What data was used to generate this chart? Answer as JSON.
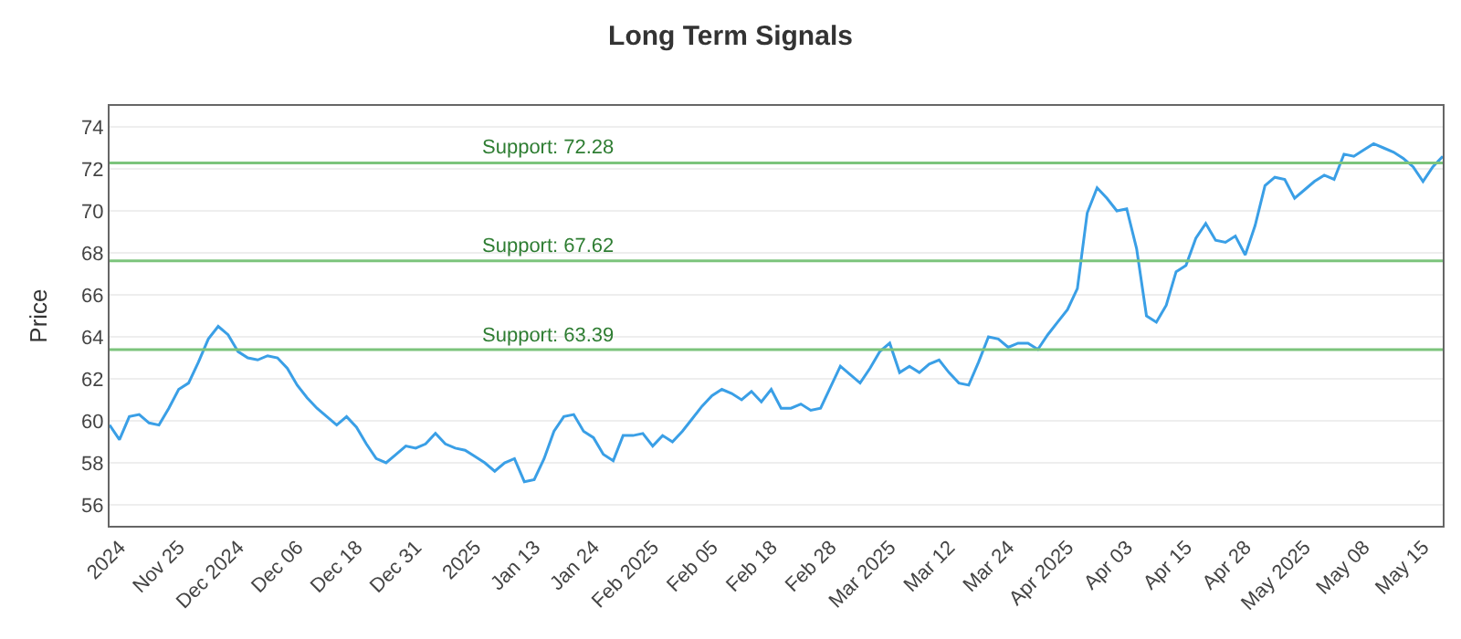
{
  "chart_data": {
    "type": "line",
    "title": "Long Term Signals",
    "ylabel": "Price",
    "categories": [
      null,
      "2024",
      null,
      null,
      null,
      null,
      null,
      "Nov 25",
      null,
      null,
      null,
      null,
      null,
      "Dec 2024",
      null,
      null,
      null,
      null,
      null,
      "Dec 06",
      null,
      null,
      null,
      null,
      null,
      "Dec 18",
      null,
      null,
      null,
      null,
      null,
      "Dec 31",
      null,
      null,
      null,
      null,
      null,
      "2025",
      null,
      null,
      null,
      null,
      null,
      "Jan 13",
      null,
      null,
      null,
      null,
      null,
      "Jan 24",
      null,
      null,
      null,
      null,
      null,
      "Feb 2025",
      null,
      null,
      null,
      null,
      null,
      "Feb 05",
      null,
      null,
      null,
      null,
      null,
      "Feb 18",
      null,
      null,
      null,
      null,
      null,
      "Feb 28",
      null,
      null,
      null,
      null,
      null,
      "Mar 2025",
      null,
      null,
      null,
      null,
      null,
      "Mar 12",
      null,
      null,
      null,
      null,
      null,
      "Mar 24",
      null,
      null,
      null,
      null,
      null,
      "Apr 2025",
      null,
      null,
      null,
      null,
      null,
      "Apr 03",
      null,
      null,
      null,
      null,
      null,
      "Apr 15",
      null,
      null,
      null,
      null,
      null,
      "Apr 28",
      null,
      null,
      null,
      null,
      null,
      "May 2025",
      null,
      null,
      null,
      null,
      null,
      "May 08",
      null,
      null,
      null,
      null,
      null,
      "May 15",
      null,
      null
    ],
    "series": [
      {
        "color": "#3a9fe6",
        "values": [
          59.8,
          59.1,
          60.2,
          60.3,
          59.9,
          59.8,
          60.6,
          61.5,
          61.8,
          62.8,
          63.9,
          64.5,
          64.1,
          63.3,
          63.0,
          62.9,
          63.1,
          63.0,
          62.5,
          61.7,
          61.1,
          60.6,
          60.2,
          59.8,
          60.2,
          59.7,
          58.9,
          58.2,
          58.0,
          58.4,
          58.8,
          58.7,
          58.9,
          59.4,
          58.9,
          58.7,
          58.6,
          58.3,
          58.0,
          57.6,
          58.0,
          58.2,
          57.1,
          57.2,
          58.2,
          59.5,
          60.2,
          60.3,
          59.5,
          59.2,
          58.4,
          58.1,
          59.3,
          59.3,
          59.4,
          58.8,
          59.3,
          59.0,
          59.5,
          60.1,
          60.7,
          61.2,
          61.5,
          61.3,
          61.0,
          61.4,
          60.9,
          61.5,
          60.6,
          60.6,
          60.8,
          60.5,
          60.6,
          61.6,
          62.6,
          62.2,
          61.8,
          62.5,
          63.3,
          63.7,
          62.3,
          62.6,
          62.3,
          62.7,
          62.9,
          62.3,
          61.8,
          61.7,
          62.8,
          64.0,
          63.9,
          63.5,
          63.7,
          63.7,
          63.4,
          64.1,
          64.7,
          65.3,
          66.3,
          69.9,
          71.1,
          70.6,
          70.0,
          70.1,
          68.2,
          65.0,
          64.7,
          65.5,
          67.1,
          67.4,
          68.7,
          69.4,
          68.6,
          68.5,
          68.8,
          67.9,
          69.3,
          71.2,
          71.6,
          71.5,
          70.6,
          71.0,
          71.4,
          71.7,
          71.5,
          72.7,
          72.6,
          72.9,
          73.2,
          73.0,
          72.8,
          72.5,
          72.1,
          71.4,
          72.1,
          72.6
        ]
      }
    ],
    "ylim": [
      55,
      75
    ],
    "yticks": [
      56,
      58,
      60,
      62,
      64,
      66,
      68,
      70,
      72,
      74
    ],
    "grid": "y",
    "legend": false,
    "marker": "none",
    "line_style": "solid",
    "ref_lines": [
      {
        "axis": "y",
        "value": 72.28,
        "label": "Support: 72.28",
        "color": "#7cc47c"
      },
      {
        "axis": "y",
        "value": 67.62,
        "label": "Support: 67.62",
        "color": "#7cc47c"
      },
      {
        "axis": "y",
        "value": 63.39,
        "label": "Support: 63.39",
        "color": "#7cc47c"
      }
    ]
  }
}
